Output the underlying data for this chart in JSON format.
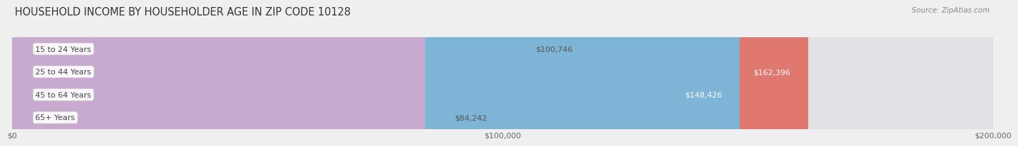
{
  "title": "HOUSEHOLD INCOME BY HOUSEHOLDER AGE IN ZIP CODE 10128",
  "source": "Source: ZipAtlas.com",
  "categories": [
    "15 to 24 Years",
    "25 to 44 Years",
    "45 to 64 Years",
    "65+ Years"
  ],
  "values": [
    100746,
    162396,
    148426,
    84242
  ],
  "labels": [
    "$100,746",
    "$162,396",
    "$148,426",
    "$84,242"
  ],
  "bar_colors": [
    "#F5C18A",
    "#E07870",
    "#7EB5D6",
    "#C8AACE"
  ],
  "background_color": "#EFEFEF",
  "bar_bg_color": "#E2E2E6",
  "bar_bg_edge_color": "#D0D0D8",
  "xlim": [
    0,
    200000
  ],
  "xticks": [
    0,
    100000,
    200000
  ],
  "xticklabels": [
    "$0",
    "$100,000",
    "$200,000"
  ],
  "title_fontsize": 10.5,
  "source_fontsize": 7.5,
  "label_fontsize": 8,
  "tick_fontsize": 8,
  "bar_height": 0.62,
  "value_label_inside_color": "#FFFFFF",
  "value_label_outside_color": "#555555",
  "cat_label_color": "#444444",
  "grid_color": "#CCCCCC",
  "inside_threshold": 130000
}
